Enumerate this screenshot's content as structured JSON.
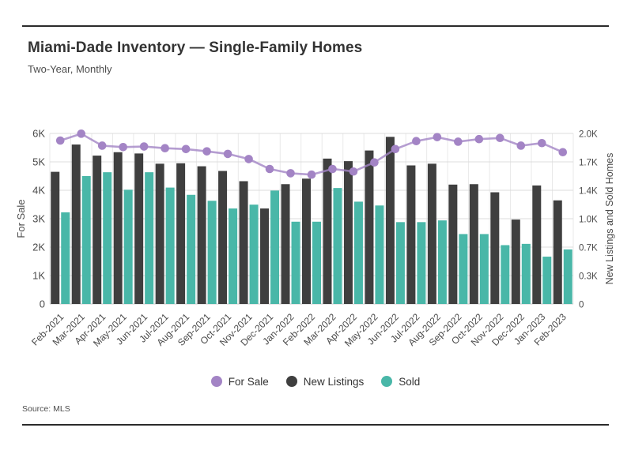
{
  "header": {
    "title": "Miami-Dade Inventory — Single-Family Homes",
    "subtitle": "Two-Year, Monthly"
  },
  "footer": {
    "source": "Source: MLS"
  },
  "legend": {
    "items": [
      {
        "label": "For Sale",
        "color": "#a384c5"
      },
      {
        "label": "New Listings",
        "color": "#3f3f3f"
      },
      {
        "label": "Sold",
        "color": "#49b7a8"
      }
    ]
  },
  "chart_data": {
    "type": "bar+line",
    "title": "Miami-Dade Inventory — Single-Family Homes",
    "subtitle": "Two-Year, Monthly",
    "grid": true,
    "legend_position": "bottom",
    "categories": [
      "Feb-2021",
      "Mar-2021",
      "Apr-2021",
      "May-2021",
      "Jun-2021",
      "Jul-2021",
      "Aug-2021",
      "Sep-2021",
      "Oct-2021",
      "Nov-2021",
      "Dec-2021",
      "Jan-2022",
      "Feb-2022",
      "Mar-2022",
      "Apr-2022",
      "May-2022",
      "Jun-2022",
      "Jul-2022",
      "Aug-2022",
      "Sep-2022",
      "Oct-2022",
      "Nov-2022",
      "Dec-2022",
      "Jan-2023",
      "Feb-2023"
    ],
    "series": [
      {
        "name": "For Sale",
        "type": "line",
        "axis": "left",
        "color": "#a384c5",
        "values": [
          5750,
          5990,
          5570,
          5520,
          5540,
          5480,
          5450,
          5370,
          5280,
          5100,
          4750,
          4600,
          4550,
          4750,
          4660,
          4980,
          5450,
          5730,
          5870,
          5710,
          5800,
          5840,
          5570,
          5660,
          5340
        ]
      },
      {
        "name": "New Listings",
        "type": "bar",
        "axis": "right",
        "color": "#3f3f3f",
        "values": [
          1550,
          1870,
          1740,
          1780,
          1765,
          1645,
          1650,
          1615,
          1560,
          1440,
          1120,
          1405,
          1470,
          1705,
          1675,
          1800,
          1960,
          1625,
          1645,
          1400,
          1405,
          1310,
          990,
          1390,
          1215
        ]
      },
      {
        "name": "Sold",
        "type": "bar",
        "axis": "right",
        "color": "#49b7a8",
        "values": [
          1075,
          1500,
          1545,
          1340,
          1545,
          1365,
          1280,
          1210,
          1120,
          1165,
          1330,
          965,
          965,
          1360,
          1200,
          1155,
          960,
          960,
          980,
          820,
          820,
          690,
          705,
          555,
          640
        ]
      }
    ],
    "left_axis": {
      "label": "For Sale",
      "max": 6000,
      "ticks": [
        "0",
        "1K",
        "2K",
        "3K",
        "4K",
        "5K",
        "6K"
      ]
    },
    "right_axis": {
      "label": "New Listings and Sold Homes",
      "max": 2000,
      "ticks": [
        "0",
        "0.3K",
        "0.7K",
        "1.0K",
        "1.4K",
        "1.7K",
        "2.0K"
      ]
    }
  }
}
